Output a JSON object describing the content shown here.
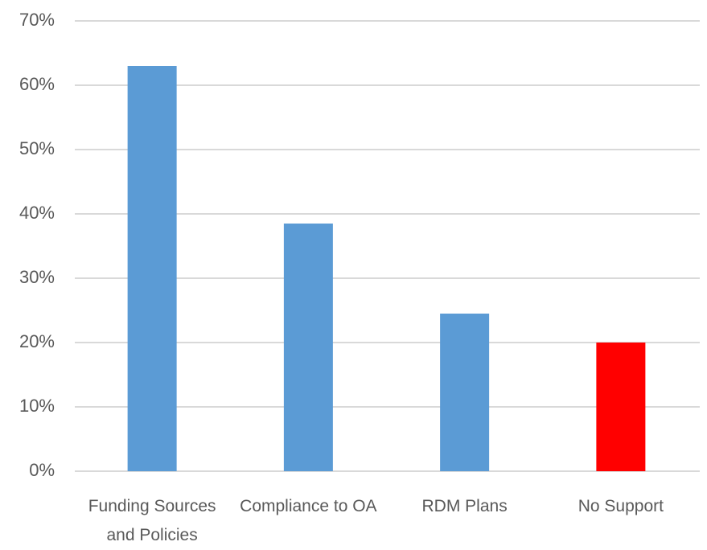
{
  "chart_data": {
    "type": "bar",
    "categories": [
      "Funding Sources and Policies",
      "Compliance to OA",
      "RDM Plans",
      "No Support"
    ],
    "values": [
      63,
      38.5,
      24.5,
      20
    ],
    "colors": [
      "#5b9bd5",
      "#5b9bd5",
      "#5b9bd5",
      "#ff0000"
    ],
    "ylim": [
      0,
      70
    ],
    "yticks": [
      {
        "value": 0,
        "label": "0%"
      },
      {
        "value": 10,
        "label": "10%"
      },
      {
        "value": 20,
        "label": "20%"
      },
      {
        "value": 30,
        "label": "30%"
      },
      {
        "value": 40,
        "label": "40%"
      },
      {
        "value": 50,
        "label": "50%"
      },
      {
        "value": 60,
        "label": "60%"
      },
      {
        "value": 70,
        "label": "70%"
      }
    ],
    "grid": true
  }
}
